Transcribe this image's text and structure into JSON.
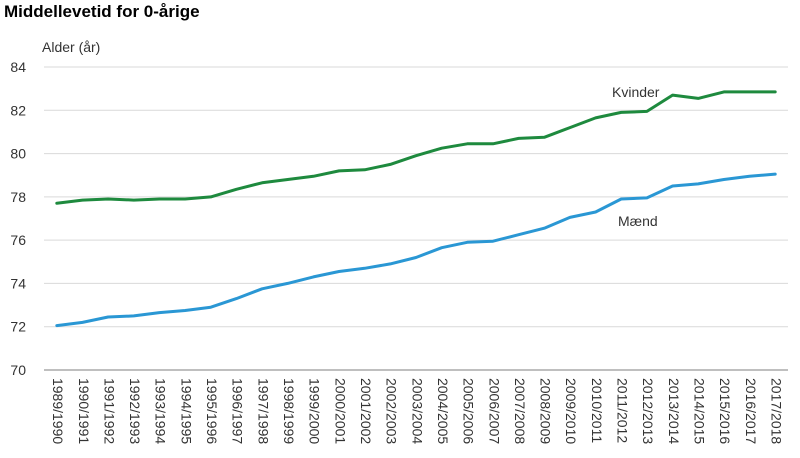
{
  "chart_data": {
    "type": "line",
    "title": "Middellevetid for 0-årige",
    "ylabel": "Alder (år)",
    "xlabel": "",
    "ylim": [
      70,
      84
    ],
    "yticks": [
      70,
      72,
      74,
      76,
      78,
      80,
      82,
      84
    ],
    "grid": true,
    "legend": "inline labels",
    "categories": [
      "1989/1990",
      "1990/1991",
      "1991/1992",
      "1992/1993",
      "1993/1994",
      "1994/1995",
      "1995/1996",
      "1996/1997",
      "1997/1998",
      "1998/1999",
      "1999/2000",
      "2000/2001",
      "2001/2002",
      "2002/2003",
      "2003/2004",
      "2004/2005",
      "2005/2006",
      "2006/2007",
      "2007/2008",
      "2008/2009",
      "2009/2010",
      "2010/2011",
      "2011/2012",
      "2012/2013",
      "2013/2014",
      "2014/2015",
      "2015/2016",
      "2016/2017",
      "2017/2018"
    ],
    "series": [
      {
        "name": "Kvinder",
        "color": "#1e8a3e",
        "values": [
          77.7,
          77.85,
          77.9,
          77.85,
          77.9,
          77.9,
          78.0,
          78.35,
          78.65,
          78.8,
          78.95,
          79.2,
          79.25,
          79.5,
          79.9,
          80.25,
          80.45,
          80.45,
          80.7,
          80.75,
          81.2,
          81.65,
          81.9,
          81.95,
          82.7,
          82.55,
          82.85,
          82.85,
          82.85
        ]
      },
      {
        "name": "Mænd",
        "color": "#2a97d4",
        "values": [
          72.05,
          72.2,
          72.45,
          72.5,
          72.65,
          72.75,
          72.9,
          73.3,
          73.75,
          74.0,
          74.3,
          74.55,
          74.7,
          74.9,
          75.2,
          75.65,
          75.9,
          75.95,
          76.25,
          76.55,
          77.05,
          77.3,
          77.9,
          77.95,
          78.5,
          78.6,
          78.8,
          78.95,
          79.05
        ]
      }
    ]
  }
}
